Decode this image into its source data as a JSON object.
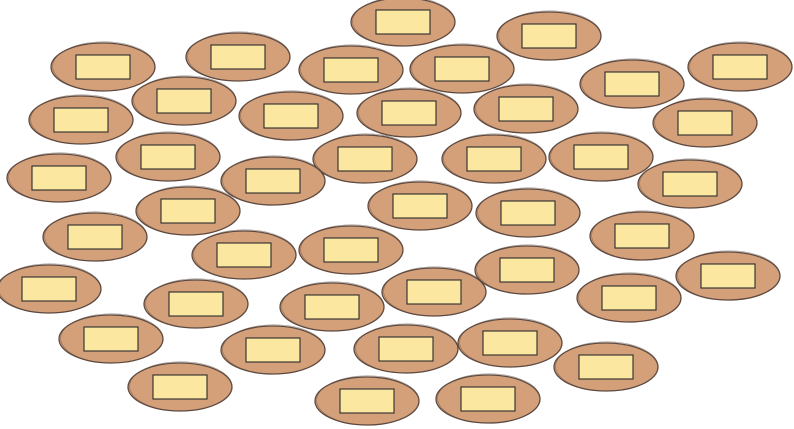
{
  "colors": {
    "background": "#ffffff",
    "ellipse_fill": "#d4a07a",
    "ellipse_stroke": "#5e4a40",
    "label_fill": "#fbe7a0",
    "label_stroke": "#2b2b2b"
  },
  "diagram": {
    "node_shape": "ellipse",
    "label_shape": "rectangle",
    "node_count": 44,
    "labels_text": ""
  }
}
